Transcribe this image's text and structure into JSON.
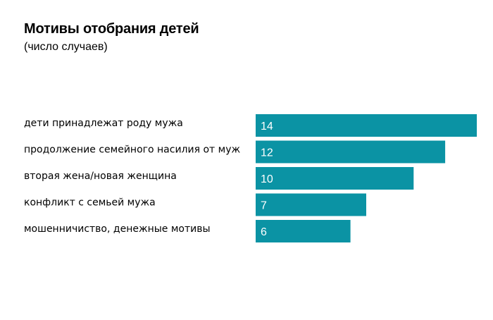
{
  "chart_data": {
    "type": "bar",
    "orientation": "horizontal",
    "title": "Мотивы отобрания детей",
    "subtitle": "(число случаев)",
    "categories": [
      "дети принадлежат роду мужа",
      "продолжение семейного насилия от муж",
      "вторая жена/новая женщина",
      "конфликт с семьей мужа",
      "мошенничиство, денежные мотивы"
    ],
    "values": [
      14,
      12,
      10,
      7,
      6
    ],
    "xlim": [
      0,
      14
    ],
    "grid": false,
    "bar_color": "#0b93a4",
    "value_label_color": "#ffffff"
  }
}
